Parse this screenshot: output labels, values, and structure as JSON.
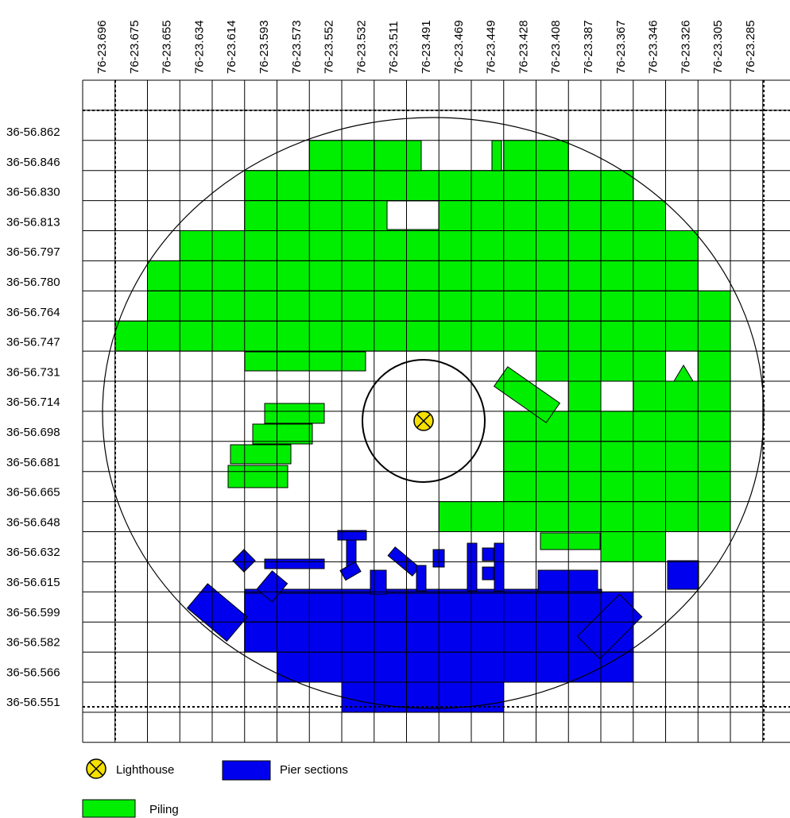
{
  "map": {
    "longitudes": [
      "76-23.696",
      "76-23.675",
      "76-23.655",
      "76-23.634",
      "76-23.614",
      "76-23.593",
      "76-23.573",
      "76-23.552",
      "76-23.532",
      "76-23.511",
      "76-23.491",
      "76-23.469",
      "76-23.449",
      "76-23.428",
      "76-23.408",
      "76-23.387",
      "76-23.367",
      "76-23.346",
      "76-23.326",
      "76-23.305",
      "76-23.285"
    ],
    "latitudes": [
      "36-56.862",
      "36-56.846",
      "36-56.830",
      "36-56.813",
      "36-56.797",
      "36-56.780",
      "36-56.764",
      "36-56.747",
      "36-56.731",
      "36-56.714",
      "36-56.698",
      "36-56.681",
      "36-56.665",
      "36-56.648",
      "36-56.632",
      "36-56.615",
      "36-56.599",
      "36-56.582",
      "36-56.566",
      "36-56.551"
    ]
  },
  "legend": {
    "lighthouse": "Lighthouse",
    "pier": "Pier sections",
    "piling": "Piling"
  }
}
